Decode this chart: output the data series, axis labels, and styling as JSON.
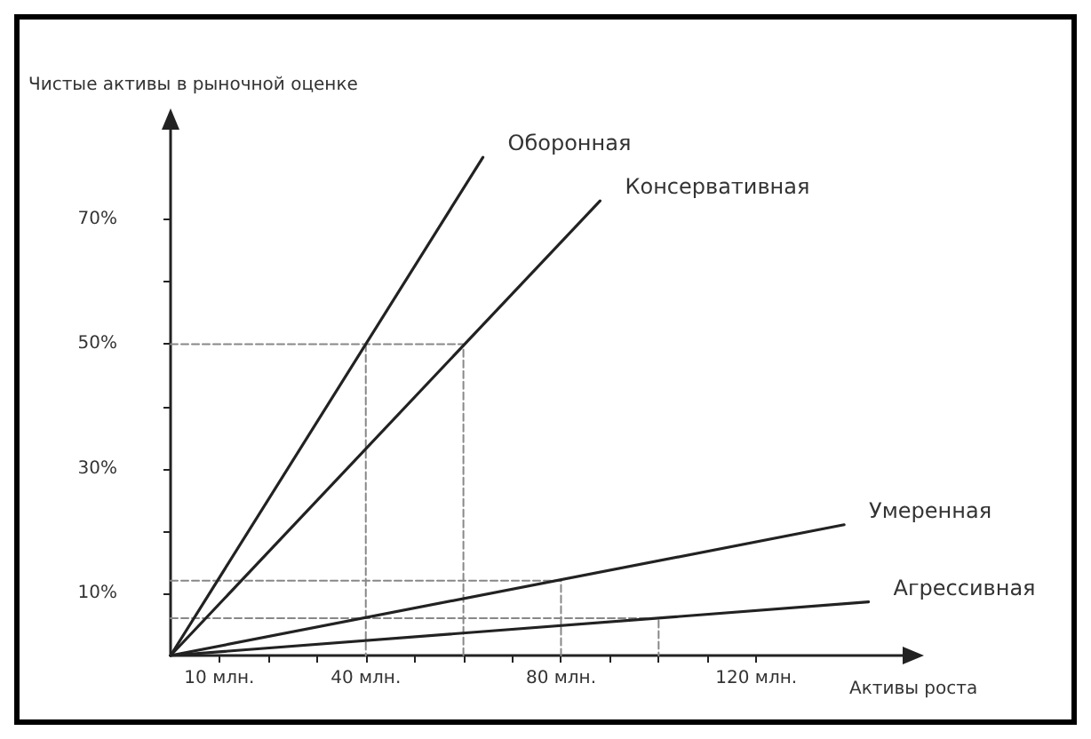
{
  "chart_data": {
    "type": "line",
    "xlabel": "Активы роста",
    "ylabel": "Чистые активы в рыночной оценке",
    "xlim": [
      0,
      150
    ],
    "ylim": [
      0,
      85
    ],
    "xticks": [
      {
        "value": 10,
        "label": "10 млн."
      },
      {
        "value": 20,
        "label": null
      },
      {
        "value": 30,
        "label": null
      },
      {
        "value": 40,
        "label": "40 млн."
      },
      {
        "value": 50,
        "label": null
      },
      {
        "value": 60,
        "label": null
      },
      {
        "value": 70,
        "label": null
      },
      {
        "value": 80,
        "label": "80 млн."
      },
      {
        "value": 90,
        "label": null
      },
      {
        "value": 100,
        "label": null
      },
      {
        "value": 110,
        "label": null
      },
      {
        "value": 120,
        "label": "120 млн."
      }
    ],
    "yticks": [
      {
        "value": 10,
        "label": "10%"
      },
      {
        "value": 20,
        "label": null
      },
      {
        "value": 30,
        "label": "30%"
      },
      {
        "value": 40,
        "label": null
      },
      {
        "value": 50,
        "label": "50%"
      },
      {
        "value": 60,
        "label": null
      },
      {
        "value": 70,
        "label": "70%"
      }
    ],
    "grid": false,
    "marker": "none",
    "series": [
      {
        "name": "Оборонная",
        "color": "#222222",
        "x": [
          0,
          64
        ],
        "values": [
          0,
          80
        ]
      },
      {
        "name": "Консервативная",
        "color": "#222222",
        "x": [
          0,
          88
        ],
        "values": [
          0,
          73
        ]
      },
      {
        "name": "Умеренная",
        "color": "#222222",
        "x": [
          0,
          138
        ],
        "values": [
          0,
          21
        ]
      },
      {
        "name": "Агрессивная",
        "color": "#222222",
        "x": [
          0,
          143
        ],
        "values": [
          0,
          8.6
        ]
      },
      {
        "color": "#888888",
        "line_style": "dashed",
        "x": [
          0,
          60,
          60
        ],
        "values": [
          50,
          50,
          0
        ]
      },
      {
        "color": "#888888",
        "line_style": "dashed",
        "x": [
          40,
          40
        ],
        "values": [
          50,
          0
        ]
      },
      {
        "color": "#888888",
        "line_style": "dashed",
        "x": [
          0,
          80,
          80
        ],
        "values": [
          12,
          12,
          0
        ]
      },
      {
        "color": "#888888",
        "line_style": "dashed",
        "x": [
          0,
          100,
          100
        ],
        "values": [
          6,
          6,
          0
        ]
      }
    ]
  }
}
